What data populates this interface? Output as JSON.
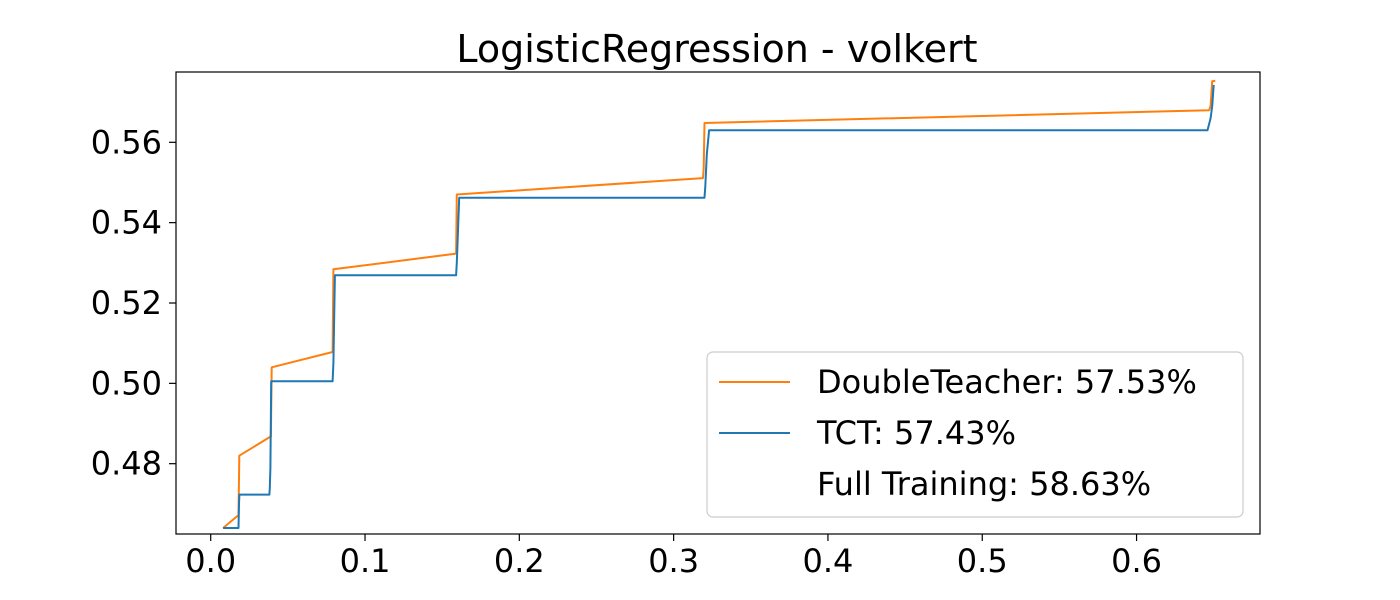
{
  "chart_data": {
    "type": "line",
    "title": "LogisticRegression - volkert",
    "xlabel": "",
    "ylabel": "",
    "xlim": [
      -0.0225,
      0.68
    ],
    "ylim": [
      0.4625,
      0.5775
    ],
    "xticks": [
      0.0,
      0.1,
      0.2,
      0.3,
      0.4,
      0.5,
      0.6
    ],
    "xtick_labels": [
      "0.0",
      "0.1",
      "0.2",
      "0.3",
      "0.4",
      "0.5",
      "0.6"
    ],
    "yticks": [
      0.48,
      0.5,
      0.52,
      0.54,
      0.56
    ],
    "ytick_labels": [
      "0.48",
      "0.50",
      "0.52",
      "0.54",
      "0.56"
    ],
    "grid": false,
    "legend_position": "lower-right",
    "series": [
      {
        "name": "DoubleTeacher: 57.53%",
        "color": "#ff7f0e",
        "x": [
          0.008,
          0.018,
          0.0185,
          0.039,
          0.0395,
          0.079,
          0.0795,
          0.159,
          0.1595,
          0.319,
          0.3195,
          0.32,
          0.647,
          0.648,
          0.6485,
          0.649,
          0.651
        ],
        "y": [
          0.464,
          0.4672,
          0.482,
          0.4868,
          0.504,
          0.5078,
          0.5284,
          0.5323,
          0.547,
          0.5511,
          0.5536,
          0.5648,
          0.568,
          0.569,
          0.572,
          0.5752,
          0.5753
        ]
      },
      {
        "name": "TCT: 57.43%",
        "color": "#1f77b4",
        "x": [
          0.008,
          0.018,
          0.0183,
          0.0186,
          0.038,
          0.0383,
          0.0387,
          0.0392,
          0.079,
          0.0795,
          0.0805,
          0.159,
          0.1595,
          0.161,
          0.32,
          0.3205,
          0.3215,
          0.323,
          0.646,
          0.648,
          0.649,
          0.65
        ],
        "y": [
          0.464,
          0.464,
          0.47,
          0.4723,
          0.4723,
          0.474,
          0.479,
          0.5005,
          0.5005,
          0.505,
          0.5269,
          0.5269,
          0.53,
          0.5462,
          0.5462,
          0.549,
          0.557,
          0.563,
          0.563,
          0.566,
          0.569,
          0.5743
        ]
      },
      {
        "name": "Full Training: 58.63%",
        "color": "#ffffff",
        "x": [],
        "y": []
      }
    ]
  }
}
